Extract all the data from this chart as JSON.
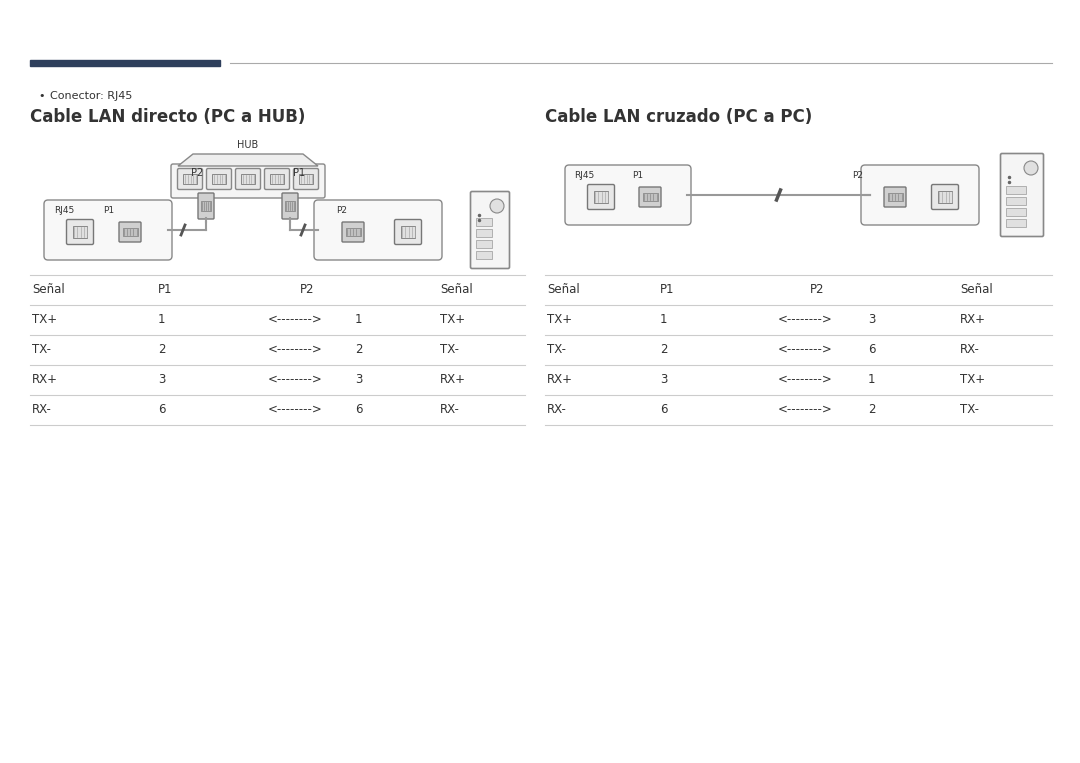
{
  "bg_color": "#ffffff",
  "dark_bar_color": "#2e3f5c",
  "line_color": "#999999",
  "text_color": "#333333",
  "table_line_color": "#cccccc",
  "bullet_text": "Conector: RJ45",
  "title_left": "Cable LAN directo (PC a HUB)",
  "title_right": "Cable LAN cruzado (PC a PC)",
  "table_left_rows": [
    [
      "TX+",
      "1",
      "<-------->",
      "1",
      "TX+"
    ],
    [
      "TX-",
      "2",
      "<-------->",
      "2",
      "TX-"
    ],
    [
      "RX+",
      "3",
      "<-------->",
      "3",
      "RX+"
    ],
    [
      "RX-",
      "6",
      "<-------->",
      "6",
      "RX-"
    ]
  ],
  "table_right_rows": [
    [
      "TX+",
      "1",
      "<-------->",
      "3",
      "RX+"
    ],
    [
      "TX-",
      "2",
      "<-------->",
      "6",
      "RX-"
    ],
    [
      "RX+",
      "3",
      "<-------->",
      "1",
      "TX+"
    ],
    [
      "RX-",
      "6",
      "<-------->",
      "2",
      "TX-"
    ]
  ]
}
